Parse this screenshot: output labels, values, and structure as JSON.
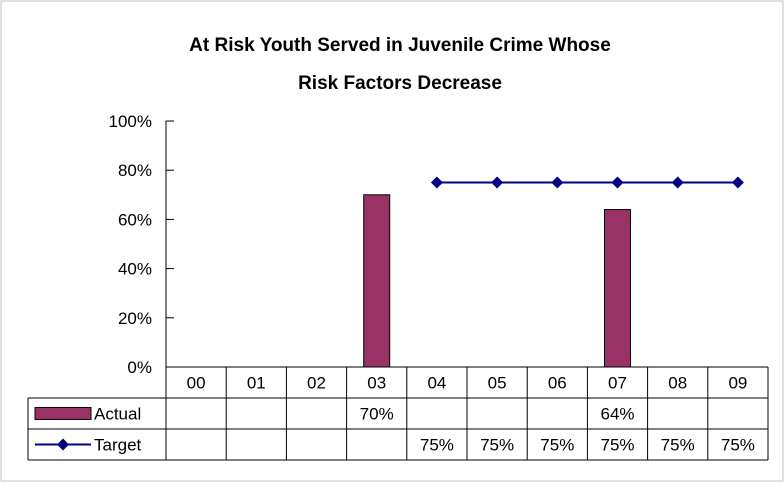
{
  "chart_data": {
    "type": "bar",
    "title_lines": [
      "At Risk Youth Served in Juvenile Crime Whose",
      "Risk Factors Decrease"
    ],
    "categories": [
      "00",
      "01",
      "02",
      "03",
      "04",
      "05",
      "06",
      "07",
      "08",
      "09"
    ],
    "ylim": [
      0,
      100
    ],
    "y_ticks": [
      0,
      20,
      40,
      60,
      80,
      100
    ],
    "y_tick_labels": [
      "0%",
      "20%",
      "40%",
      "60%",
      "80%",
      "100%"
    ],
    "legend": "data-table",
    "grid": false,
    "series": [
      {
        "name": "Actual",
        "kind": "bar",
        "color": "#993366",
        "values": [
          null,
          null,
          null,
          70,
          null,
          null,
          null,
          64,
          null,
          null
        ],
        "labels": [
          "",
          "",
          "",
          "70%",
          "",
          "",
          "",
          "64%",
          "",
          ""
        ]
      },
      {
        "name": "Target",
        "kind": "line",
        "marker": "diamond",
        "color": "#000080",
        "values": [
          null,
          null,
          null,
          null,
          75,
          75,
          75,
          75,
          75,
          75
        ],
        "labels": [
          "",
          "",
          "",
          "",
          "75%",
          "75%",
          "75%",
          "75%",
          "75%",
          "75%"
        ]
      }
    ]
  }
}
